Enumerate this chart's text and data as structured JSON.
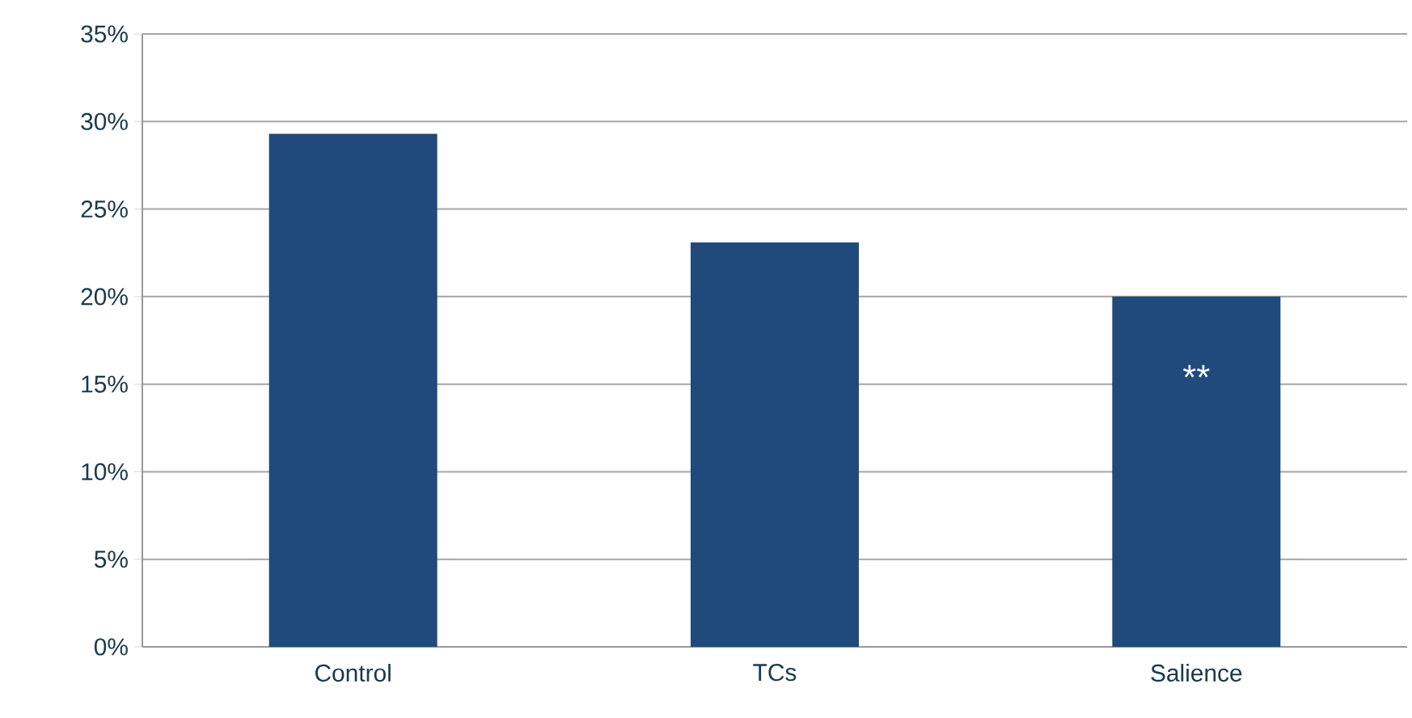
{
  "chart_data": {
    "type": "bar",
    "categories": [
      "Control",
      "TCs",
      "Salience"
    ],
    "values": [
      29.3,
      23.1,
      20
    ],
    "color": "#204a7b",
    "ylim": [
      0,
      35
    ],
    "yticks": [
      {
        "value": 0,
        "label": "0%"
      },
      {
        "value": 5,
        "label": "5%"
      },
      {
        "value": 10,
        "label": "10%"
      },
      {
        "value": 15,
        "label": "15%"
      },
      {
        "value": 20,
        "label": "20%"
      },
      {
        "value": 25,
        "label": "25%"
      },
      {
        "value": 30,
        "label": "30%"
      },
      {
        "value": 35,
        "label": "35%"
      }
    ],
    "grid": "y",
    "annotations": [
      "**"
    ]
  }
}
